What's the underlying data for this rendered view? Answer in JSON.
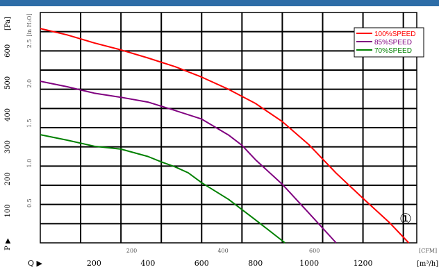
{
  "header": {
    "bar_color": "#2d6da7"
  },
  "chart_data": {
    "type": "line",
    "title": "",
    "axes": {
      "x_primary": {
        "unit": "[m³/h]",
        "range": [
          0,
          1400
        ],
        "ticks": [
          200,
          400,
          600,
          800,
          1000,
          1200
        ],
        "label": "Q ▶"
      },
      "x_secondary": {
        "unit": "[CFM]",
        "range": [
          0,
          824
        ],
        "ticks": [
          200,
          400,
          600
        ]
      },
      "y_primary": {
        "unit": "[Pa]",
        "range": [
          0,
          720
        ],
        "ticks": [
          100,
          200,
          300,
          400,
          500,
          600
        ],
        "label": "P ▶"
      },
      "y_secondary": {
        "unit": "[in H₂O]",
        "ticks": [
          0.5,
          1.0,
          1.5,
          2.0,
          2.5
        ]
      }
    },
    "grid": true,
    "legend": {
      "placement": "top-right"
    },
    "series": [
      {
        "name": "100%SPEED",
        "color": "#ff0000",
        "x": [
          0,
          100,
          200,
          300,
          400,
          500,
          600,
          700,
          800,
          900,
          1000,
          1100,
          1200,
          1300,
          1370
        ],
        "y": [
          670,
          650,
          625,
          603,
          578,
          551,
          518,
          480,
          436,
          379,
          306,
          218,
          139,
          62,
          0
        ]
      },
      {
        "name": "85%SPEED",
        "color": "#800080",
        "x": [
          0,
          100,
          200,
          300,
          400,
          500,
          600,
          700,
          750,
          800,
          900,
          1000,
          1100
        ],
        "y": [
          505,
          488,
          468,
          455,
          440,
          414,
          387,
          337,
          305,
          260,
          183,
          92,
          0
        ]
      },
      {
        "name": "70%SPEED",
        "color": "#008000",
        "x": [
          0,
          100,
          200,
          300,
          400,
          450,
          500,
          550,
          600,
          700,
          800,
          910
        ],
        "y": [
          338,
          321,
          302,
          293,
          270,
          253,
          238,
          219,
          188,
          136,
          72,
          0
        ]
      }
    ],
    "annotations": [
      {
        "text": "①"
      }
    ]
  }
}
